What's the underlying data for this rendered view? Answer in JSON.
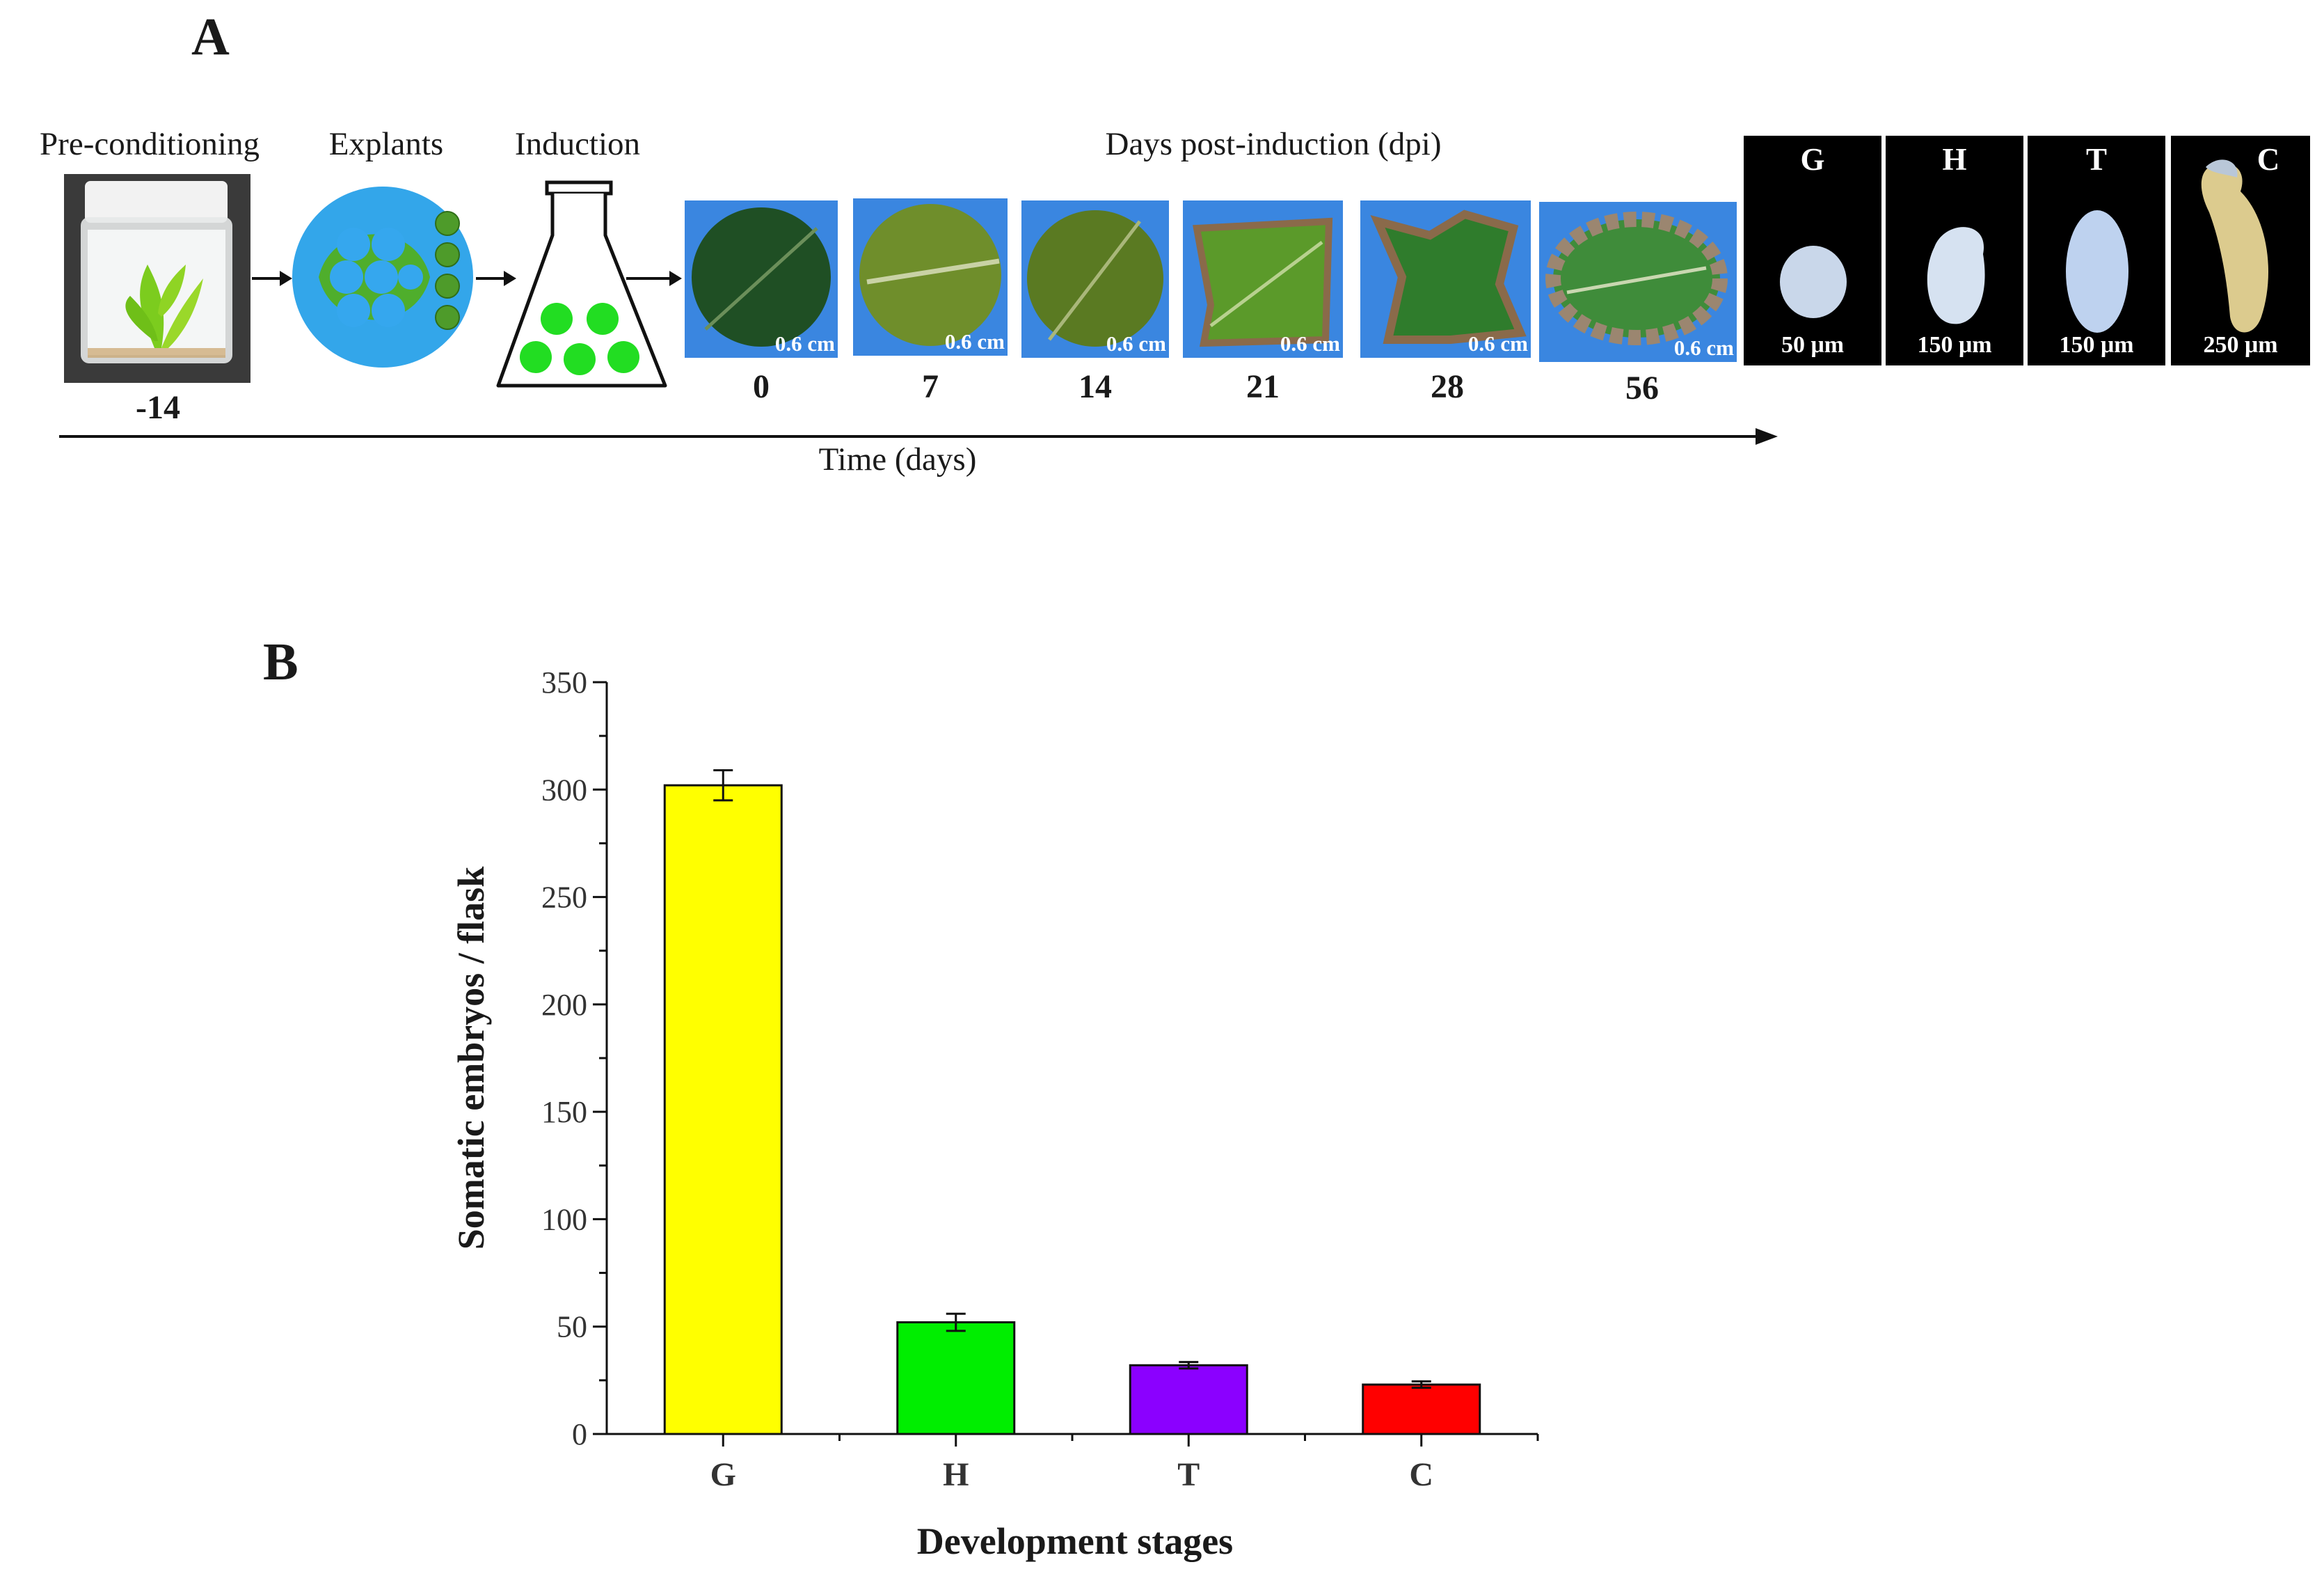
{
  "panel_a": {
    "letter": "A",
    "steps": [
      {
        "label": "Pre-conditioning",
        "day": "-14"
      },
      {
        "label": "Explants"
      },
      {
        "label": "Induction"
      }
    ],
    "dpi_title": "Days post-induction (dpi)",
    "leaf_photos": [
      {
        "day": "0",
        "scale": "0.6 cm"
      },
      {
        "day": "7",
        "scale": "0.6 cm"
      },
      {
        "day": "14",
        "scale": "0.6 cm"
      },
      {
        "day": "21",
        "scale": "0.6 cm"
      },
      {
        "day": "28",
        "scale": "0.6 cm"
      },
      {
        "day": "56",
        "scale": "0.6 cm"
      }
    ],
    "embryos": [
      {
        "stage": "G",
        "scale": "50 μm",
        "color": "#c9d7ea"
      },
      {
        "stage": "H",
        "scale": "150 μm",
        "color": "#d6e2f1"
      },
      {
        "stage": "T",
        "scale": "150 μm",
        "color": "#bed2ef"
      },
      {
        "stage": "C",
        "scale": "250 μm",
        "color": "#dccb8e"
      }
    ],
    "time_axis_label": "Time (days)"
  },
  "panel_b": {
    "letter": "B"
  },
  "chart_data": {
    "type": "bar",
    "categories": [
      "G",
      "H",
      "T",
      "C"
    ],
    "values": [
      302,
      52,
      32,
      23
    ],
    "errors": [
      7,
      4,
      1.5,
      1.5
    ],
    "colors": [
      "#ffff00",
      "#00ee00",
      "#8b00ff",
      "#ff0000"
    ],
    "title": "",
    "xlabel": "Development stages",
    "ylabel": "Somatic embryos / flask",
    "ylim": [
      0,
      350
    ],
    "yticks": [
      0,
      50,
      100,
      150,
      200,
      250,
      300,
      350
    ],
    "grid": false
  }
}
